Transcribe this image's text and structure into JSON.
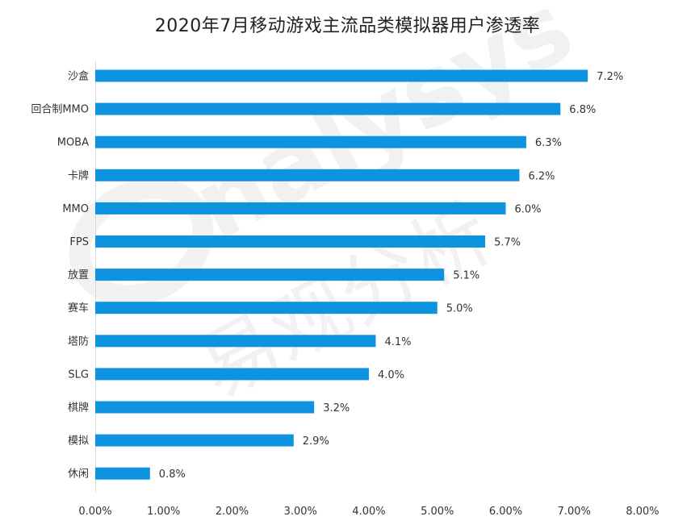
{
  "watermark": {
    "logo_text": "nalysys",
    "brand_cn": "易观分析"
  },
  "chart_data": {
    "type": "bar",
    "orientation": "horizontal",
    "title": "2020年7月移动游戏主流品类模拟器用户渗透率",
    "xlabel": "",
    "ylabel": "",
    "xlim": [
      0,
      8
    ],
    "grid": false,
    "legend": "none",
    "bar_color": "#0e93e0",
    "categories": [
      "沙盒",
      "回合制MMO",
      "MOBA",
      "卡牌",
      "MMO",
      "FPS",
      "放置",
      "赛车",
      "塔防",
      "SLG",
      "棋牌",
      "模拟",
      "休闲"
    ],
    "values": [
      7.2,
      6.8,
      6.3,
      6.2,
      6.0,
      5.7,
      5.1,
      5.0,
      4.1,
      4.0,
      3.2,
      2.9,
      0.8
    ],
    "value_labels": [
      "7.2%",
      "6.8%",
      "6.3%",
      "6.2%",
      "6.0%",
      "5.7%",
      "5.1%",
      "5.0%",
      "4.1%",
      "4.0%",
      "3.2%",
      "2.9%",
      "0.8%"
    ],
    "x_ticks": [
      0,
      1,
      2,
      3,
      4,
      5,
      6,
      7,
      8
    ],
    "x_tick_labels": [
      "0.00%",
      "1.00%",
      "2.00%",
      "3.00%",
      "4.00%",
      "5.00%",
      "6.00%",
      "7.00%",
      "8.00%"
    ]
  }
}
